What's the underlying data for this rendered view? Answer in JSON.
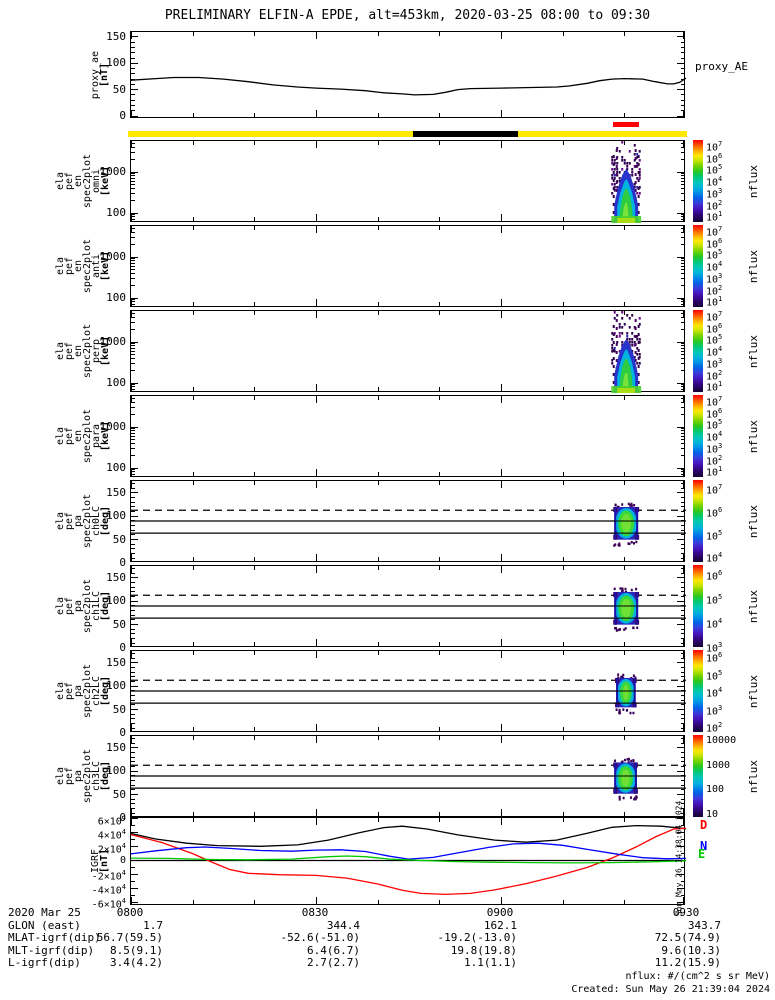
{
  "title": "PRELIMINARY ELFIN-A EPDE, alt=453km, 2020-03-25 08:00 to 09:30",
  "footer": {
    "nflux_units": "nflux: #/(cm^2 s sr MeV)",
    "created": "Created: Sun May 26 21:39:04 2024",
    "side_timestamp": "Sun May 26 14:38:04 2024"
  },
  "bottom_table": {
    "date_label": "2020 Mar 25",
    "time_ticks": [
      "0800",
      "0830",
      "0900",
      "0930"
    ],
    "rows": [
      {
        "label": "GLON (east)",
        "values": [
          "1.7",
          "344.4",
          "162.1",
          "343.7"
        ]
      },
      {
        "label": "MLAT-igrf(dip)",
        "values": [
          "56.7(59.5)",
          "-52.6(-51.0)",
          "-19.2(-13.0)",
          "72.5(74.9)"
        ]
      },
      {
        "label": "MLT-igrf(dip)",
        "values": [
          "8.5(9.1)",
          "6.4(6.7)",
          "19.8(19.8)",
          "9.6(10.3)"
        ]
      },
      {
        "label": "L-igrf(dip)",
        "values": [
          "3.4(4.2)",
          "2.7(2.7)",
          "1.1(1.1)",
          "11.2(15.9)"
        ]
      }
    ]
  },
  "chart_data": {
    "type": "heatmap",
    "date": "2020 Mar 25",
    "time_range": [
      "08:00",
      "09:30"
    ],
    "x_ticks": [
      "0800",
      "0830",
      "0900",
      "0930"
    ],
    "status_bar": {
      "segments": [
        {
          "color": "#ffe800",
          "from": 0.0,
          "to": 0.51
        },
        {
          "color": "#000000",
          "from": 0.51,
          "to": 0.697
        },
        {
          "color": "#ffe800",
          "from": 0.697,
          "to": 1.0
        }
      ],
      "marker": {
        "color": "#ff0000",
        "from": 0.868,
        "to": 0.915
      }
    },
    "panels": [
      {
        "id": "proxy_ae",
        "left_label_lines": [
          "proxy_ae",
          "[nT]"
        ],
        "right_label": "proxy_AE",
        "y_tick_labels": [
          "0",
          "50",
          "100",
          "150"
        ],
        "series": [
          {
            "name": "proxy_AE",
            "color": "#000000",
            "x_minutes_values": [
              [
                0,
                68
              ],
              [
                4,
                71
              ],
              [
                7,
                73
              ],
              [
                11,
                73
              ],
              [
                15,
                70
              ],
              [
                19,
                65
              ],
              [
                23,
                59
              ],
              [
                27,
                55
              ],
              [
                30,
                53
              ],
              [
                34,
                51
              ],
              [
                38,
                48
              ],
              [
                41,
                44
              ],
              [
                44,
                42
              ],
              [
                46,
                40
              ],
              [
                49,
                41
              ],
              [
                51,
                45
              ],
              [
                53,
                50
              ],
              [
                55,
                52
              ],
              [
                60,
                53
              ],
              [
                65,
                54
              ],
              [
                69,
                55
              ],
              [
                71,
                57
              ],
              [
                74,
                62
              ],
              [
                76,
                67
              ],
              [
                78,
                70
              ],
              [
                80,
                71
              ],
              [
                83,
                70
              ],
              [
                85,
                65
              ],
              [
                87,
                61
              ],
              [
                88,
                61
              ],
              [
                89,
                64
              ],
              [
                90,
                72
              ]
            ]
          }
        ]
      },
      {
        "id": "en_omni",
        "left_label_lines": [
          "ela",
          "pef",
          "en",
          "spec2plot",
          "omni",
          "[keV]"
        ],
        "y_scale": "log",
        "y_tick_labels": [
          "100",
          "1000"
        ],
        "burst": {
          "from_min": 78.2,
          "to_min": 82.4,
          "energy_kev_range": [
            60,
            6000
          ]
        },
        "colorbar": {
          "label": "nflux",
          "tick_labels": [
            "10^7",
            "10^6",
            "10^5",
            "10^4",
            "10^3",
            "10^2",
            "10^1"
          ]
        }
      },
      {
        "id": "en_anti",
        "left_label_lines": [
          "ela",
          "pef",
          "en",
          "spec2plot",
          "anti",
          "[keV]"
        ],
        "y_scale": "log",
        "y_tick_labels": [
          "100",
          "1000"
        ],
        "colorbar": {
          "label": "nflux",
          "tick_labels": [
            "10^7",
            "10^6",
            "10^5",
            "10^4",
            "10^3",
            "10^2",
            "10^1"
          ]
        }
      },
      {
        "id": "en_perp",
        "left_label_lines": [
          "ela",
          "pef",
          "en",
          "spec2plot",
          "perp",
          "[keV]"
        ],
        "y_scale": "log",
        "y_tick_labels": [
          "100",
          "1000"
        ],
        "burst": {
          "from_min": 78.2,
          "to_min": 82.4,
          "energy_kev_range": [
            60,
            6000
          ]
        },
        "colorbar": {
          "label": "nflux",
          "tick_labels": [
            "10^7",
            "10^6",
            "10^5",
            "10^4",
            "10^3",
            "10^2",
            "10^1"
          ]
        }
      },
      {
        "id": "en_para",
        "left_label_lines": [
          "ela",
          "pef",
          "en",
          "spec2plot",
          "para",
          "[keV]"
        ],
        "y_scale": "log",
        "y_tick_labels": [
          "100",
          "1000"
        ],
        "colorbar": {
          "label": "nflux",
          "tick_labels": [
            "10^7",
            "10^6",
            "10^5",
            "10^4",
            "10^3",
            "10^2",
            "10^1"
          ]
        }
      },
      {
        "id": "pa_ch0LC",
        "left_label_lines": [
          "ela",
          "pef",
          "pa",
          "spec2plot",
          "ch0LC",
          "[deg]"
        ],
        "y_tick_labels": [
          "0",
          "50",
          "100",
          "150"
        ],
        "overlay_lines": {
          "dashed_deg": 113,
          "solid_deg": [
            90,
            64
          ]
        },
        "burst": {
          "from_min": 78.2,
          "to_min": 82.4,
          "pa_deg_range": [
            50,
            120
          ]
        },
        "colorbar": {
          "label": "nflux",
          "tick_labels": [
            "10^7",
            "10^6",
            "10^5",
            "10^4"
          ]
        }
      },
      {
        "id": "pa_ch1LC",
        "left_label_lines": [
          "ela",
          "pef",
          "pa",
          "spec2plot",
          "ch1LC",
          "[deg]"
        ],
        "y_tick_labels": [
          "0",
          "50",
          "100",
          "150"
        ],
        "overlay_lines": {
          "dashed_deg": 113,
          "solid_deg": [
            90,
            64
          ]
        },
        "burst": {
          "from_min": 78.2,
          "to_min": 82.4,
          "pa_deg_range": [
            50,
            120
          ]
        },
        "colorbar": {
          "label": "nflux",
          "tick_labels": [
            "10^6",
            "10^5",
            "10^4",
            "10^3"
          ]
        }
      },
      {
        "id": "pa_ch2LC",
        "left_label_lines": [
          "ela",
          "pef",
          "pa",
          "spec2plot",
          "ch2LC",
          "[deg]"
        ],
        "y_tick_labels": [
          "0",
          "50",
          "100",
          "150"
        ],
        "overlay_lines": {
          "dashed_deg": 113,
          "solid_deg": [
            90,
            64
          ]
        },
        "burst": {
          "from_min": 78.5,
          "to_min": 82.0,
          "pa_deg_range": [
            55,
            118
          ]
        },
        "colorbar": {
          "label": "nflux",
          "tick_labels": [
            "10^6",
            "10^5",
            "10^4",
            "10^3",
            "10^2"
          ]
        }
      },
      {
        "id": "pa_ch3LC",
        "left_label_lines": [
          "ela",
          "pef",
          "pa",
          "spec2plot",
          "ch3LC",
          "[deg]"
        ],
        "y_tick_labels": [
          "0",
          "50",
          "100",
          "150"
        ],
        "overlay_lines": {
          "dashed_deg": 113,
          "solid_deg": [
            90,
            64
          ]
        },
        "burst": {
          "from_min": 78.2,
          "to_min": 82.2,
          "pa_deg_range": [
            52,
            119
          ]
        },
        "colorbar": {
          "label": "nflux",
          "tick_labels": [
            "10000",
            "1000",
            "100",
            "10"
          ]
        }
      },
      {
        "id": "igrf",
        "left_label_lines": [
          "IGRF",
          "[nT]"
        ],
        "y_tick_labels": [
          "-6×10^4",
          "-4×10^4",
          "-2×10^4",
          "0",
          "2×10^4",
          "4×10^4",
          "6×10^4"
        ],
        "legend": [
          {
            "text": "D",
            "color": "#ff0000"
          },
          {
            "text": "N",
            "color": "#0000ff"
          },
          {
            "text": "E",
            "color": "#00c800"
          }
        ],
        "series": [
          {
            "name": "B",
            "color": "#000000",
            "x_minutes_values": [
              [
                0,
                39000
              ],
              [
                4,
                31000
              ],
              [
                9,
                25000
              ],
              [
                14,
                21500
              ],
              [
                21,
                20500
              ],
              [
                27,
                22500
              ],
              [
                32,
                29500
              ],
              [
                37,
                40000
              ],
              [
                41,
                47500
              ],
              [
                44,
                49500
              ],
              [
                48,
                45500
              ],
              [
                53,
                37000
              ],
              [
                59,
                29500
              ],
              [
                64,
                26500
              ],
              [
                69,
                29500
              ],
              [
                74,
                39500
              ],
              [
                78,
                48000
              ],
              [
                82,
                50500
              ],
              [
                86,
                49500
              ],
              [
                90,
                46000
              ]
            ]
          },
          {
            "name": "D",
            "color": "#ff0000",
            "x_minutes_values": [
              [
                0,
                37500
              ],
              [
                5,
                26000
              ],
              [
                10,
                10000
              ],
              [
                13,
                -2000
              ],
              [
                16,
                -13000
              ],
              [
                19,
                -18500
              ],
              [
                24,
                -20500
              ],
              [
                30,
                -21500
              ],
              [
                35,
                -25500
              ],
              [
                40,
                -34000
              ],
              [
                44,
                -43000
              ],
              [
                47,
                -47500
              ],
              [
                51,
                -49000
              ],
              [
                55,
                -47500
              ],
              [
                59,
                -42500
              ],
              [
                64,
                -33500
              ],
              [
                69,
                -22500
              ],
              [
                74,
                -10000
              ],
              [
                78,
                3500
              ],
              [
                82,
                20000
              ],
              [
                85,
                34000
              ],
              [
                88,
                45500
              ],
              [
                90,
                46500
              ]
            ]
          },
          {
            "name": "N",
            "color": "#0000ff",
            "x_minutes_values": [
              [
                0,
                9500
              ],
              [
                4,
                14000
              ],
              [
                9,
                18500
              ],
              [
                12,
                19500
              ],
              [
                16,
                17500
              ],
              [
                21,
                14500
              ],
              [
                26,
                13500
              ],
              [
                30,
                15000
              ],
              [
                34,
                15500
              ],
              [
                38,
                13000
              ],
              [
                42,
                6000
              ],
              [
                45,
                2000
              ],
              [
                49,
                4500
              ],
              [
                53,
                11000
              ],
              [
                58,
                19000
              ],
              [
                62,
                24000
              ],
              [
                66,
                25000
              ],
              [
                70,
                22000
              ],
              [
                74,
                16000
              ],
              [
                79,
                9000
              ],
              [
                83,
                4000
              ],
              [
                87,
                2500
              ],
              [
                90,
                3000
              ]
            ]
          },
          {
            "name": "E",
            "color": "#00c800",
            "x_minutes_values": [
              [
                0,
                3500
              ],
              [
                6,
                3000
              ],
              [
                13,
                1500
              ],
              [
                19,
                1000
              ],
              [
                26,
                2000
              ],
              [
                32,
                5500
              ],
              [
                35,
                6500
              ],
              [
                38,
                5500
              ],
              [
                42,
                2000
              ],
              [
                46,
                500
              ],
              [
                52,
                -1500
              ],
              [
                58,
                -2500
              ],
              [
                65,
                -3000
              ],
              [
                71,
                -3500
              ],
              [
                78,
                -3000
              ],
              [
                84,
                -2000
              ],
              [
                90,
                -500
              ]
            ]
          }
        ]
      }
    ]
  }
}
